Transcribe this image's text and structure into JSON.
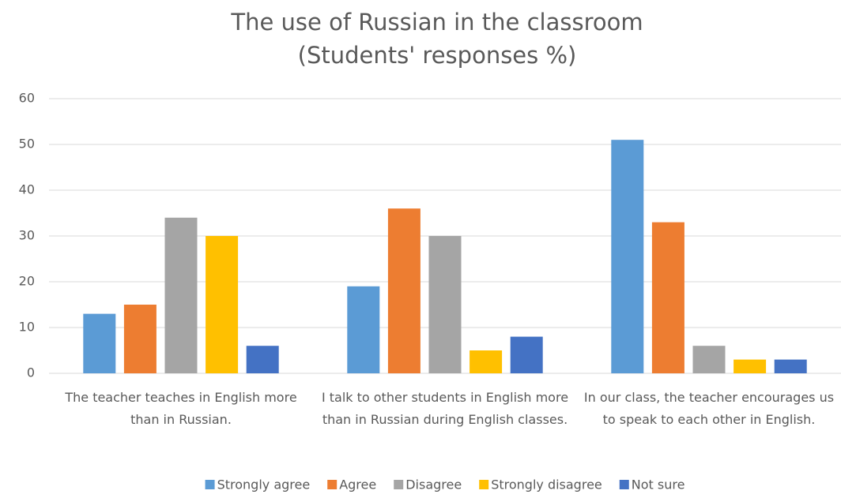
{
  "chart_data": {
    "type": "bar",
    "title": "The use of Russian in the classroom",
    "subtitle": "(Students' responses %)",
    "categories": [
      "The teacher teaches in English more than in Russian.",
      "I talk to other students in English more than in Russian during English classes.",
      "In our class, the teacher encourages us to speak to each other in English."
    ],
    "series": [
      {
        "name": "Strongly agree",
        "color": "#5b9bd5",
        "values": [
          13,
          19,
          51
        ]
      },
      {
        "name": "Agree",
        "color": "#ed7d31",
        "values": [
          15,
          36,
          33
        ]
      },
      {
        "name": "Disagree",
        "color": "#a5a5a5",
        "values": [
          34,
          30,
          6
        ]
      },
      {
        "name": "Strongly disagree",
        "color": "#ffc000",
        "values": [
          30,
          5,
          3
        ]
      },
      {
        "name": "Not sure",
        "color": "#4472c4",
        "values": [
          6,
          8,
          3
        ]
      }
    ],
    "ylim": [
      0,
      60
    ],
    "yticks": [
      0,
      10,
      20,
      30,
      40,
      50,
      60
    ],
    "grid": true,
    "legend": "bottom"
  }
}
